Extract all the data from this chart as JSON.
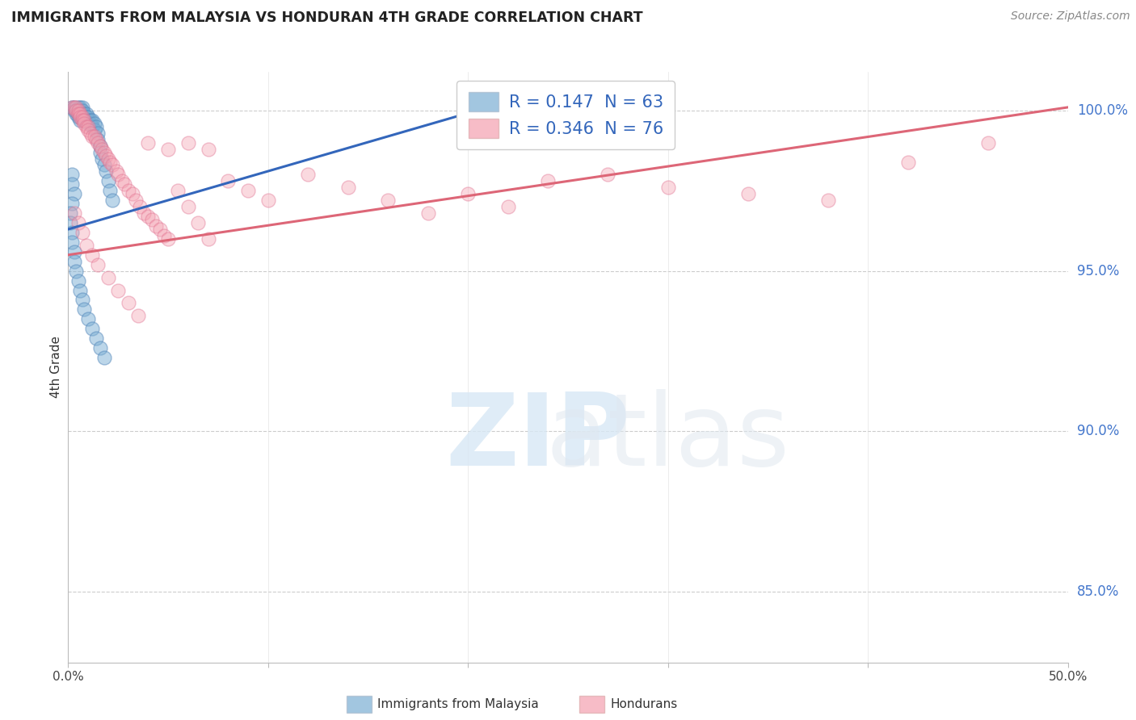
{
  "title": "IMMIGRANTS FROM MALAYSIA VS HONDURAN 4TH GRADE CORRELATION CHART",
  "source": "Source: ZipAtlas.com",
  "ylabel": "4th Grade",
  "ytick_values": [
    0.85,
    0.9,
    0.95,
    1.0
  ],
  "xlim": [
    0.0,
    0.5
  ],
  "ylim": [
    0.828,
    1.012
  ],
  "blue_color": "#7BAFD4",
  "pink_color": "#F4A0B0",
  "blue_edge_color": "#5588BB",
  "pink_edge_color": "#E07090",
  "blue_line_color": "#3366BB",
  "pink_line_color": "#DD6677",
  "blue_line_x0": 0.0,
  "blue_line_x1": 0.21,
  "blue_line_y0": 0.963,
  "blue_line_y1": 1.001,
  "pink_line_x0": 0.0,
  "pink_line_x1": 0.5,
  "pink_line_y0": 0.955,
  "pink_line_y1": 1.001,
  "legend_text1": "R = 0.147  N = 63",
  "legend_text2": "R = 0.346  N = 76",
  "watermark_zip": "ZIP",
  "watermark_atlas": "atlas",
  "blue_x": [
    0.002,
    0.003,
    0.003,
    0.004,
    0.004,
    0.004,
    0.005,
    0.005,
    0.005,
    0.005,
    0.006,
    0.006,
    0.006,
    0.006,
    0.006,
    0.007,
    0.007,
    0.007,
    0.008,
    0.008,
    0.008,
    0.009,
    0.009,
    0.01,
    0.01,
    0.01,
    0.011,
    0.011,
    0.012,
    0.012,
    0.013,
    0.013,
    0.014,
    0.015,
    0.015,
    0.016,
    0.016,
    0.017,
    0.018,
    0.019,
    0.02,
    0.021,
    0.022,
    0.002,
    0.002,
    0.003,
    0.002,
    0.001,
    0.001,
    0.002,
    0.002,
    0.003,
    0.003,
    0.004,
    0.005,
    0.006,
    0.007,
    0.008,
    0.01,
    0.012,
    0.014,
    0.016,
    0.018
  ],
  "blue_y": [
    1.001,
    1.001,
    1.0,
    1.0,
    1.0,
    0.999,
    1.001,
    1.0,
    0.999,
    0.998,
    1.001,
    1.0,
    0.999,
    0.998,
    0.997,
    1.001,
    1.0,
    0.999,
    0.999,
    0.998,
    0.997,
    0.999,
    0.998,
    0.998,
    0.997,
    0.996,
    0.997,
    0.996,
    0.997,
    0.995,
    0.996,
    0.994,
    0.995,
    0.993,
    0.991,
    0.989,
    0.987,
    0.985,
    0.983,
    0.981,
    0.978,
    0.975,
    0.972,
    0.98,
    0.977,
    0.974,
    0.971,
    0.968,
    0.965,
    0.962,
    0.959,
    0.956,
    0.953,
    0.95,
    0.947,
    0.944,
    0.941,
    0.938,
    0.935,
    0.932,
    0.929,
    0.926,
    0.923
  ],
  "pink_x": [
    0.002,
    0.003,
    0.004,
    0.004,
    0.005,
    0.005,
    0.006,
    0.006,
    0.007,
    0.007,
    0.008,
    0.008,
    0.009,
    0.01,
    0.01,
    0.011,
    0.012,
    0.013,
    0.014,
    0.015,
    0.016,
    0.017,
    0.018,
    0.019,
    0.02,
    0.021,
    0.022,
    0.024,
    0.025,
    0.027,
    0.028,
    0.03,
    0.032,
    0.034,
    0.036,
    0.038,
    0.04,
    0.042,
    0.044,
    0.046,
    0.048,
    0.05,
    0.055,
    0.06,
    0.065,
    0.07,
    0.08,
    0.09,
    0.1,
    0.12,
    0.14,
    0.16,
    0.18,
    0.2,
    0.22,
    0.24,
    0.27,
    0.3,
    0.34,
    0.38,
    0.42,
    0.46,
    0.003,
    0.005,
    0.007,
    0.009,
    0.012,
    0.015,
    0.02,
    0.025,
    0.03,
    0.035,
    0.04,
    0.05,
    0.06,
    0.07
  ],
  "pink_y": [
    1.001,
    1.001,
    1.001,
    1.0,
    1.0,
    0.999,
    0.999,
    0.998,
    0.998,
    0.997,
    0.997,
    0.996,
    0.995,
    0.995,
    0.994,
    0.993,
    0.992,
    0.992,
    0.991,
    0.99,
    0.989,
    0.988,
    0.987,
    0.986,
    0.985,
    0.984,
    0.983,
    0.981,
    0.98,
    0.978,
    0.977,
    0.975,
    0.974,
    0.972,
    0.97,
    0.968,
    0.967,
    0.966,
    0.964,
    0.963,
    0.961,
    0.96,
    0.975,
    0.97,
    0.965,
    0.96,
    0.978,
    0.975,
    0.972,
    0.98,
    0.976,
    0.972,
    0.968,
    0.974,
    0.97,
    0.978,
    0.98,
    0.976,
    0.974,
    0.972,
    0.984,
    0.99,
    0.968,
    0.965,
    0.962,
    0.958,
    0.955,
    0.952,
    0.948,
    0.944,
    0.94,
    0.936,
    0.99,
    0.988,
    0.99,
    0.988
  ]
}
